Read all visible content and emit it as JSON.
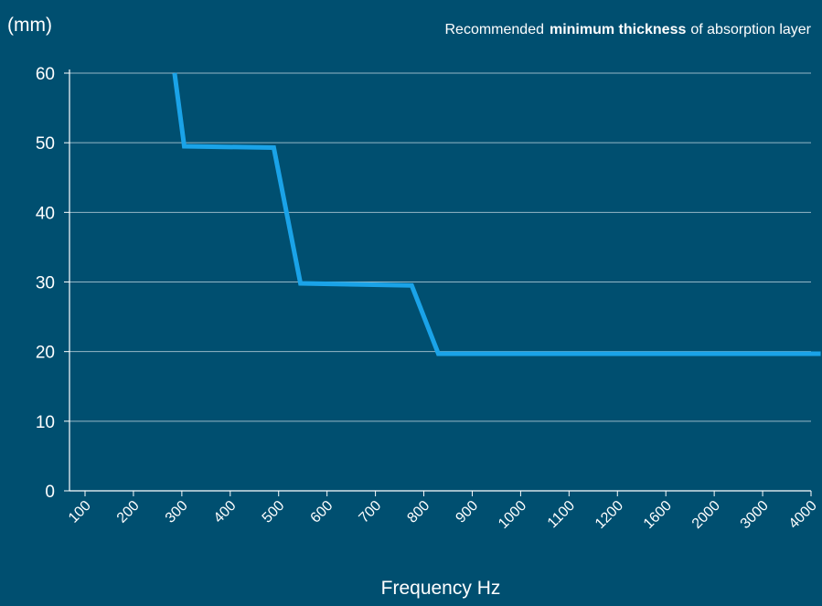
{
  "chart_data": {
    "type": "line",
    "title_prefix": "Recommended",
    "title_bold": "minimum thickness",
    "title_suffix": "of absorption layer",
    "ylabel": "(mm)",
    "xlabel": "Frequency Hz",
    "categories": [
      "100",
      "200",
      "300",
      "400",
      "500",
      "600",
      "700",
      "800",
      "900",
      "1000",
      "1100",
      "1200",
      "1600",
      "2000",
      "3000",
      "4000"
    ],
    "yticks": [
      0,
      10,
      20,
      30,
      40,
      50,
      60
    ],
    "ylim": [
      0,
      60
    ],
    "grid": true,
    "series": [
      {
        "points": [
          {
            "x": 1.85,
            "y": 60
          },
          {
            "x": 2.05,
            "y": 49.5
          },
          {
            "x": 3.9,
            "y": 49.3
          },
          {
            "x": 4.45,
            "y": 29.8
          },
          {
            "x": 6.75,
            "y": 29.5
          },
          {
            "x": 7.3,
            "y": 19.7
          },
          {
            "x": 15.2,
            "y": 19.7
          }
        ]
      }
    ],
    "line_color": "#1aa3e8",
    "background_color": "#004f70",
    "grid_color": "#c8d9e3",
    "text_color": "#ffffff"
  }
}
